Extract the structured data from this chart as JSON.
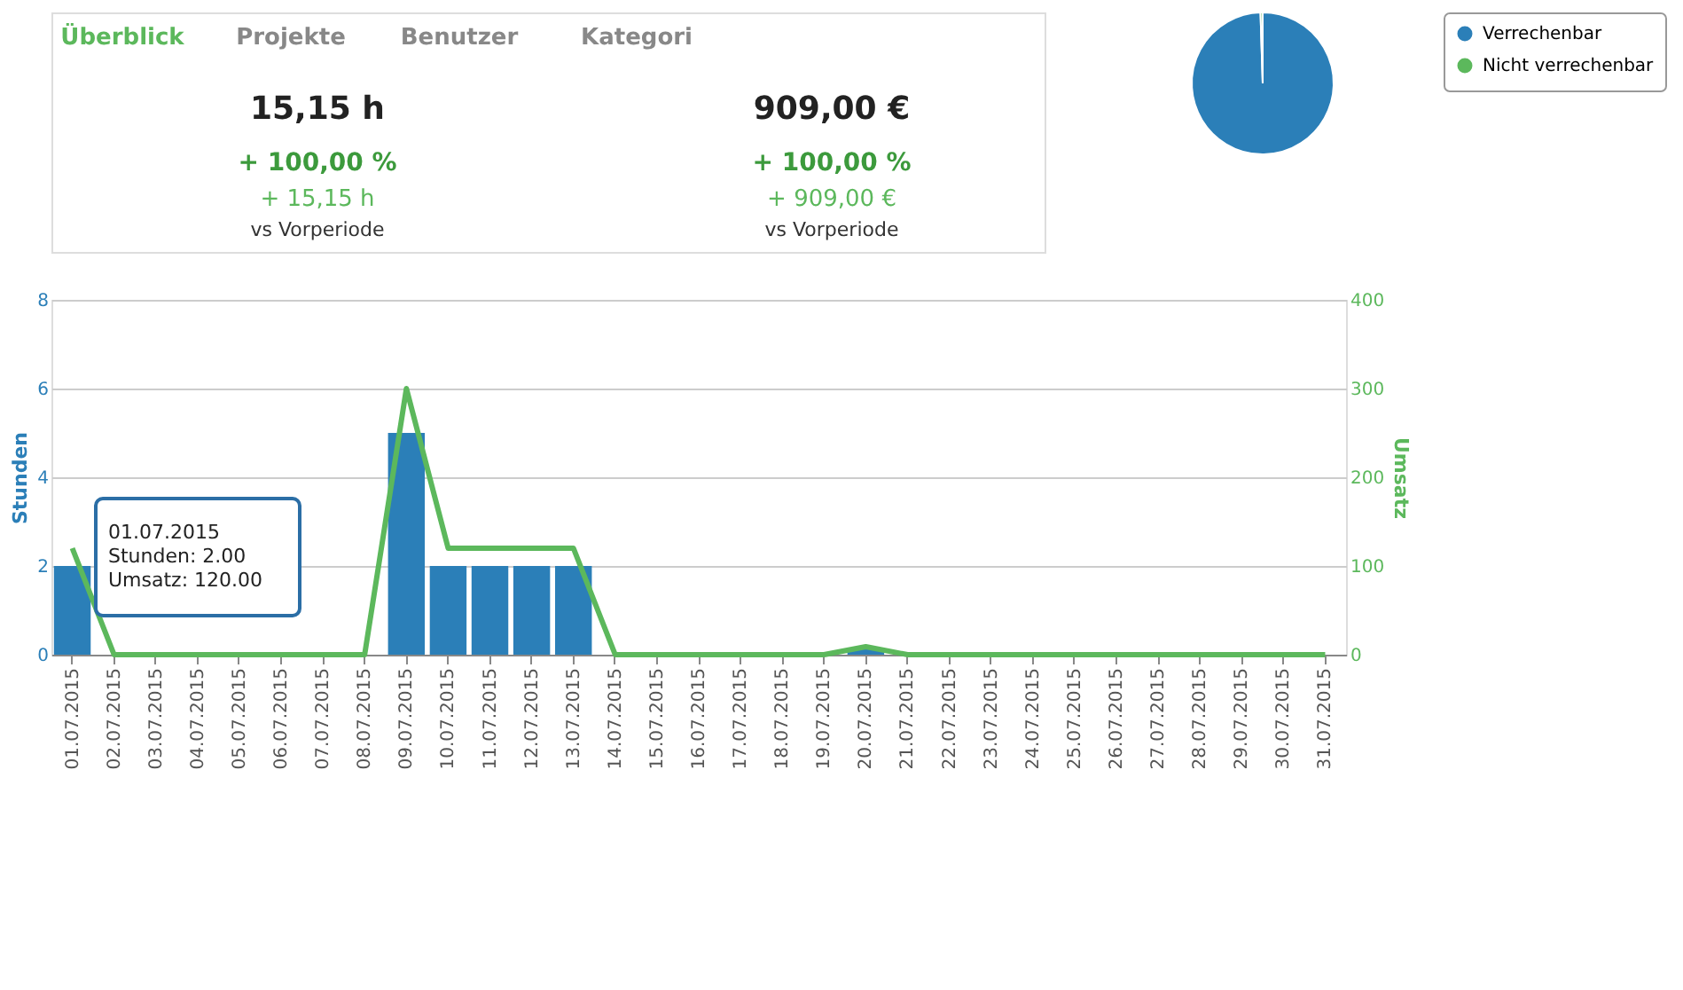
{
  "chart_data": [
    {
      "type": "other",
      "annotations": [
        "Überblick",
        "Projekte",
        "Benutzer",
        "Kategori",
        "15,15 h",
        "+ 100,00 %",
        "+ 15,15 h",
        "vs Vorperiode",
        "909,00 €",
        "+ 100,00 %",
        "+ 909,00 €",
        "vs Vorperiode"
      ]
    },
    {
      "type": "pie",
      "categories": [
        "Verrechenbar",
        "Nicht verrechenbar"
      ],
      "values": [
        99.5,
        0.5
      ],
      "colors": [
        "#2b7fb8",
        "#5cb85c"
      ],
      "legend": "right"
    },
    {
      "type": "bar",
      "categories": [
        "01.07.2015",
        "02.07.2015",
        "03.07.2015",
        "04.07.2015",
        "05.07.2015",
        "06.07.2015",
        "07.07.2015",
        "08.07.2015",
        "09.07.2015",
        "10.07.2015",
        "11.07.2015",
        "12.07.2015",
        "13.07.2015",
        "14.07.2015",
        "15.07.2015",
        "16.07.2015",
        "17.07.2015",
        "18.07.2015",
        "19.07.2015",
        "20.07.2015",
        "21.07.2015",
        "22.07.2015",
        "23.07.2015",
        "24.07.2015",
        "25.07.2015",
        "26.07.2015",
        "27.07.2015",
        "28.07.2015",
        "29.07.2015",
        "30.07.2015",
        "31.07.2015"
      ],
      "series": [
        {
          "type": "bar",
          "color": "#2b7fb8",
          "values": [
            2,
            0,
            0,
            0,
            0,
            0,
            0,
            0,
            5,
            2,
            2,
            2,
            2,
            0,
            0,
            0,
            0,
            0,
            0,
            0.15,
            0,
            0,
            0,
            0,
            0,
            0,
            0,
            0,
            0,
            0,
            0
          ]
        },
        {
          "type": "line",
          "axis": "y2",
          "color": "#5cb85c",
          "values": [
            120,
            0,
            0,
            0,
            0,
            0,
            0,
            0,
            300,
            120,
            120,
            120,
            120,
            0,
            0,
            0,
            0,
            0,
            0,
            9,
            0,
            0,
            0,
            0,
            0,
            0,
            0,
            0,
            0,
            0,
            0
          ]
        }
      ],
      "ylabel": "Stunden",
      "y2label": "Umsatz",
      "ylim": [
        0,
        8
      ],
      "yticks": [
        0,
        2,
        4,
        6,
        8
      ],
      "y2lim": [
        0,
        400
      ],
      "y2ticks": [
        0,
        100,
        200,
        300,
        400
      ],
      "grid": "y",
      "legend": false,
      "marker": "none",
      "line_style": "solid",
      "annotations": [
        "01.07.2015",
        "Stunden: 2.00",
        "Umsatz: 120.00"
      ]
    }
  ]
}
